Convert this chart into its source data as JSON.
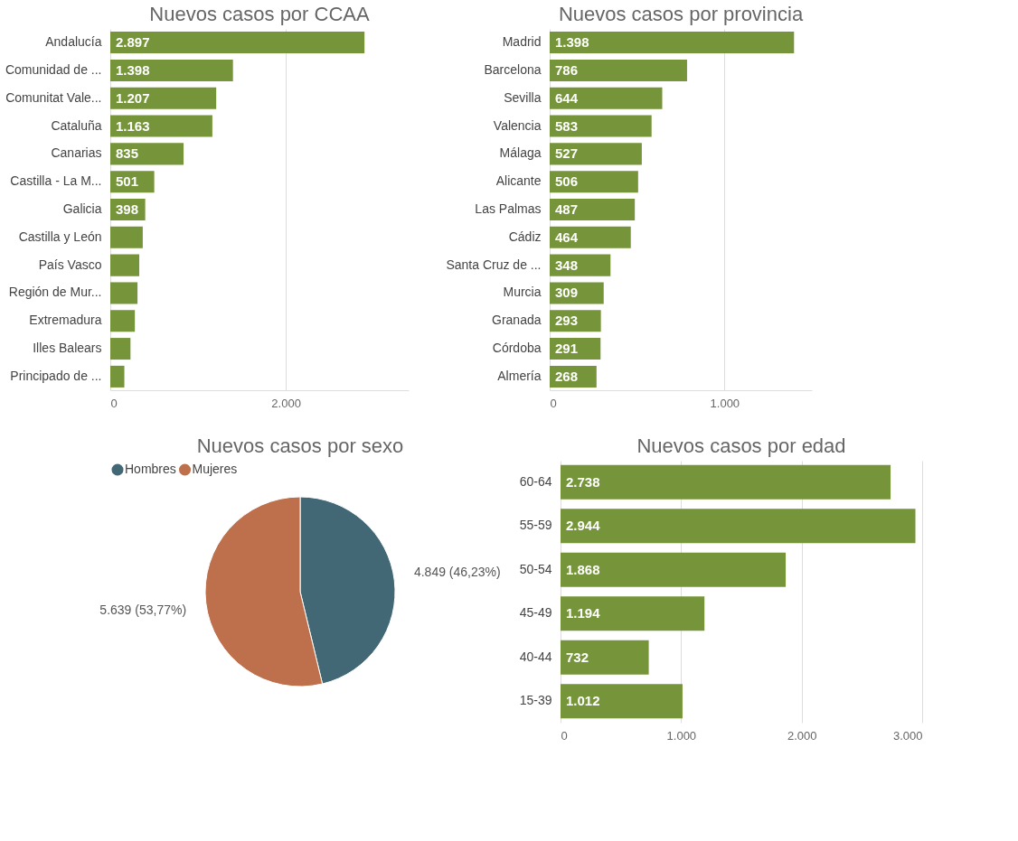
{
  "chart_data": [
    {
      "type": "bar",
      "orientation": "horizontal",
      "title": "Nuevos casos por CCAA",
      "categories": [
        "Andalucía",
        "Comunidad de ...",
        "Comunitat Vale...",
        "Cataluña",
        "Canarias",
        "Castilla - La M...",
        "Galicia",
        "Castilla y León",
        "País Vasco",
        "Región de Mur...",
        "Extremadura",
        "Illes Balears",
        "Principado de ..."
      ],
      "values": [
        2897,
        1398,
        1207,
        1163,
        835,
        501,
        398,
        370,
        330,
        310,
        280,
        230,
        160
      ],
      "value_labels": [
        "2.897",
        "1.398",
        "1.207",
        "1.163",
        "835",
        "501",
        "398",
        null,
        null,
        null,
        null,
        null,
        null
      ],
      "color": "#76953a",
      "xlim": [
        0,
        3400
      ],
      "xticks": [
        0,
        {
          "value": 2000,
          "label": "2.000"
        }
      ],
      "grid": "x"
    },
    {
      "type": "bar",
      "orientation": "horizontal",
      "title": "Nuevos casos por provincia",
      "categories": [
        "Madrid",
        "Barcelona",
        "Sevilla",
        "Valencia",
        "Málaga",
        "Alicante",
        "Las Palmas",
        "Cádiz",
        "Santa Cruz de ...",
        "Murcia",
        "Granada",
        "Córdoba",
        "Almería"
      ],
      "values": [
        1398,
        786,
        644,
        583,
        527,
        506,
        487,
        464,
        348,
        309,
        293,
        291,
        268
      ],
      "value_labels": [
        "1.398",
        "786",
        "644",
        "583",
        "527",
        "506",
        "487",
        "464",
        "348",
        "309",
        "293",
        "291",
        "268"
      ],
      "color": "#76953a",
      "xlim": [
        0,
        1500
      ],
      "xticks": [
        0,
        {
          "value": 1000,
          "label": "1.000"
        }
      ],
      "grid": "x"
    },
    {
      "type": "pie",
      "title": "Nuevos casos por sexo",
      "categories": [
        "Hombres",
        "Mujeres"
      ],
      "values": [
        4849,
        5639
      ],
      "value_labels": [
        "4.849 (46,23%)",
        "5.639 (53,77%)"
      ],
      "colors": [
        "#426876",
        "#bd704b"
      ],
      "legend": "top left"
    },
    {
      "type": "bar",
      "orientation": "horizontal",
      "title": "Nuevos casos por edad",
      "categories": [
        "60-64",
        "55-59",
        "50-54",
        "45-49",
        "40-44",
        "15-39"
      ],
      "values": [
        2738,
        2944,
        1868,
        1194,
        732,
        1012
      ],
      "value_labels": [
        "2.738",
        "2.944",
        "1.868",
        "1.194",
        "732",
        "1.012"
      ],
      "color": "#76953a",
      "xlim": [
        0,
        3000
      ],
      "xticks": [
        0,
        {
          "value": 1000,
          "label": "1.000"
        },
        {
          "value": 2000,
          "label": "2.000"
        },
        {
          "value": 3000,
          "label": "3.000"
        }
      ],
      "grid": "x"
    }
  ]
}
